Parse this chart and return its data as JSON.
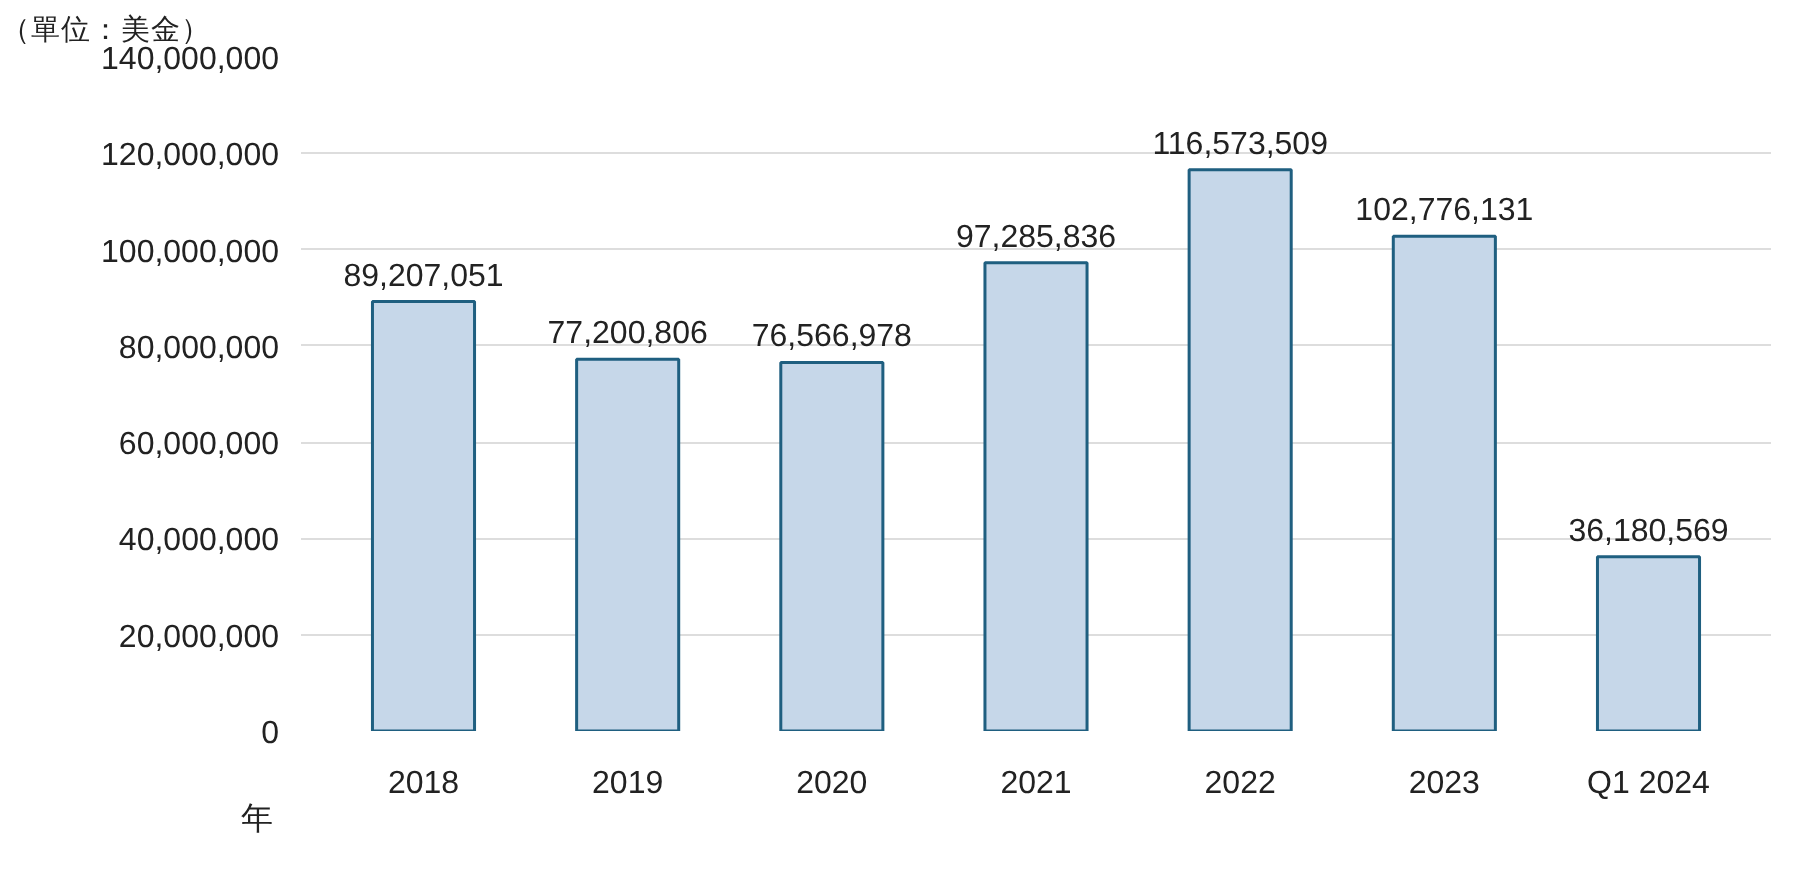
{
  "chart_data": {
    "type": "bar",
    "ylabel": "（單位：美金）",
    "xlabel": "年",
    "categories": [
      "2018",
      "2019",
      "2020",
      "2021",
      "2022",
      "2023",
      "Q1 2024"
    ],
    "values": [
      89207051,
      77200806,
      76566978,
      97285836,
      116573509,
      102776131,
      36180569
    ],
    "color": "#c6d7e9",
    "grid": "y",
    "value_labels": [
      "89,207,051",
      "77,200,806",
      "76,566,978",
      "97,285,836",
      "116,573,509",
      "102,776,131",
      "36,180,569"
    ],
    "ylim": [
      0,
      140000000
    ],
    "yticks": [
      {
        "value": 0,
        "label": "0"
      },
      {
        "value": 20000000,
        "label": "20,000,000"
      },
      {
        "value": 40000000,
        "label": "40,000,000"
      },
      {
        "value": 60000000,
        "label": "60,000,000"
      },
      {
        "value": 80000000,
        "label": "80,000,000"
      },
      {
        "value": 100000000,
        "label": "100,000,000"
      },
      {
        "value": 120000000,
        "label": "120,000,000"
      },
      {
        "value": 140000000,
        "label": "140,000,000"
      }
    ]
  }
}
